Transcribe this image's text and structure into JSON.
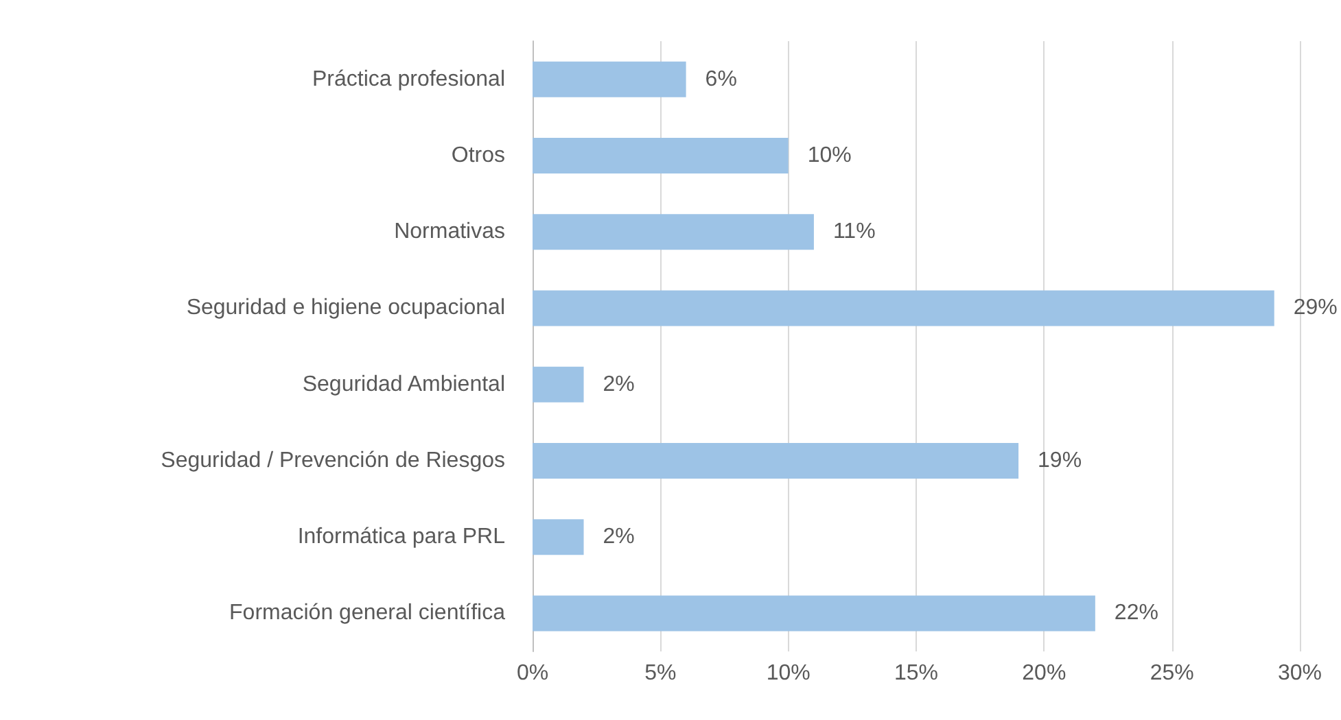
{
  "chart_data": {
    "type": "bar",
    "orientation": "horizontal",
    "categories": [
      "Práctica profesional",
      "Otros",
      "Normativas",
      "Seguridad e higiene ocupacional",
      "Seguridad Ambiental",
      "Seguridad / Prevención de Riesgos",
      "Informática para PRL",
      "Formación general científica"
    ],
    "values": [
      6,
      10,
      11,
      29,
      2,
      19,
      2,
      22
    ],
    "value_labels": [
      "6%",
      "10%",
      "11%",
      "29%",
      "2%",
      "19%",
      "2%",
      "22%"
    ],
    "color": "#9dc3e6",
    "xlim": [
      0,
      30
    ],
    "xticks": [
      {
        "value": 0,
        "label": "0%"
      },
      {
        "value": 5,
        "label": "5%"
      },
      {
        "value": 10,
        "label": "10%"
      },
      {
        "value": 15,
        "label": "15%"
      },
      {
        "value": 20,
        "label": "20%"
      },
      {
        "value": 25,
        "label": "25%"
      },
      {
        "value": 30,
        "label": "30%"
      }
    ],
    "grid": "x"
  }
}
